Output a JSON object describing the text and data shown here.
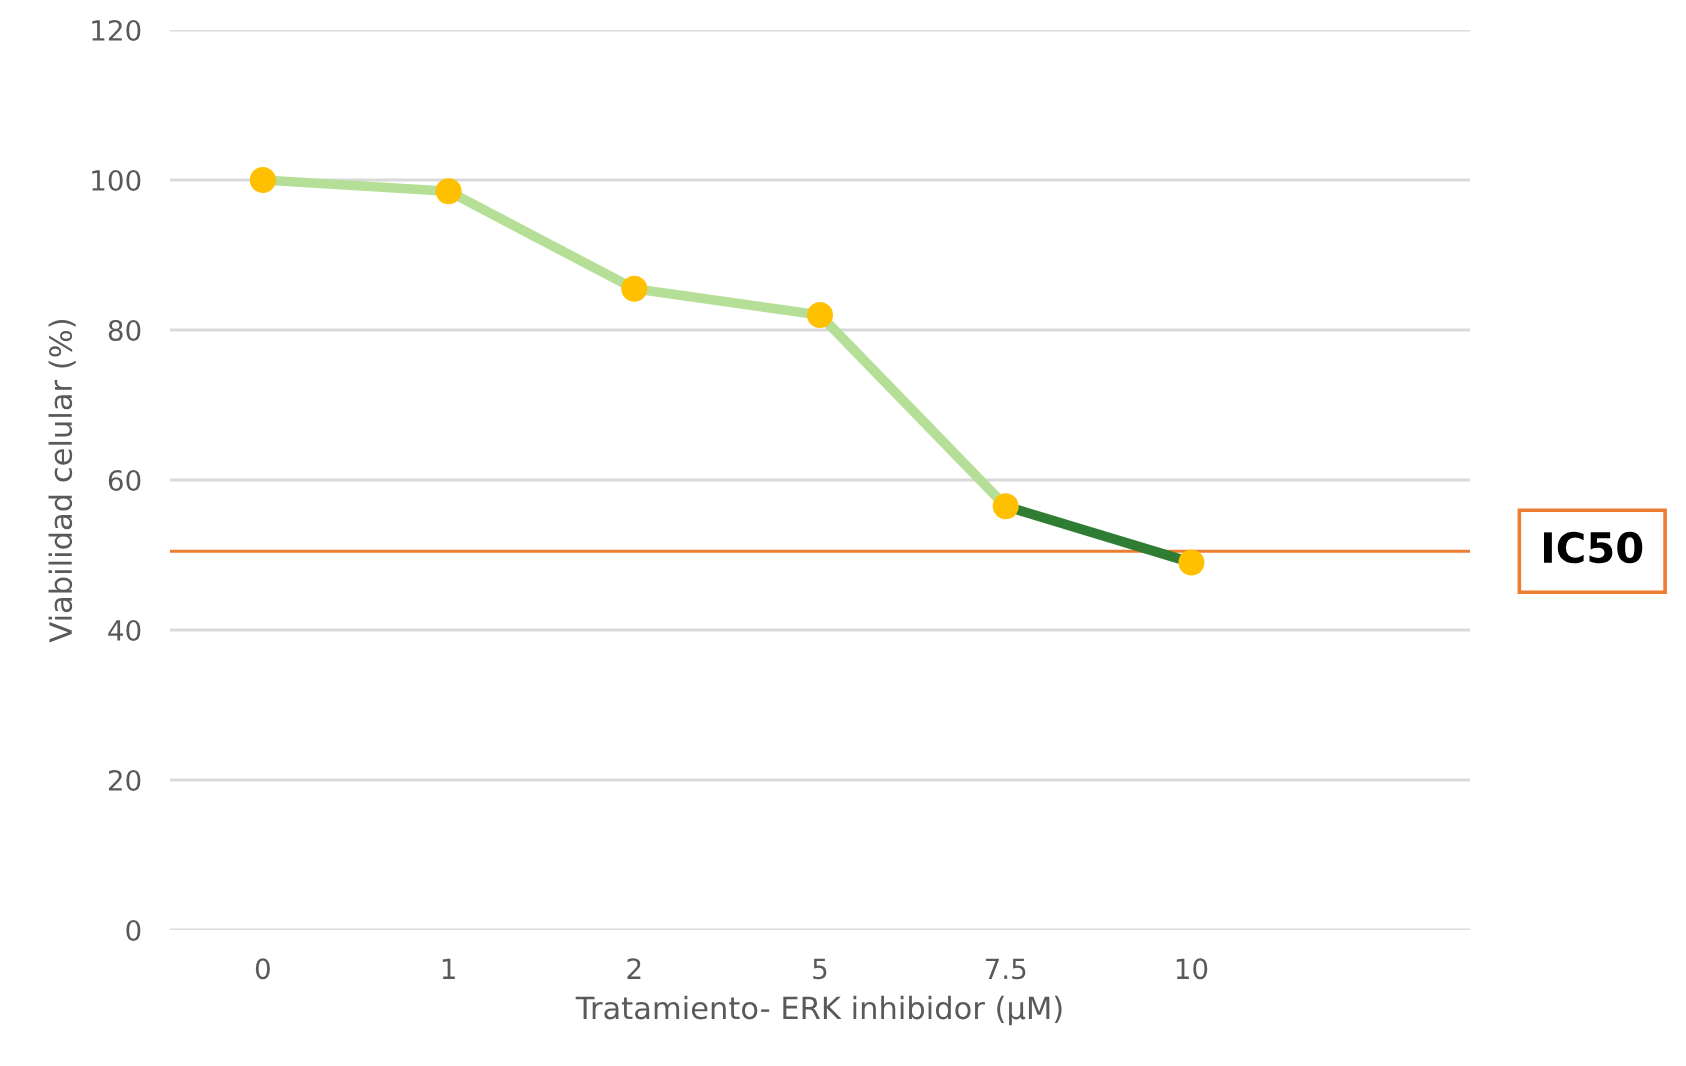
{
  "chart_data": {
    "type": "line",
    "xlabel": "Tratamiento- ERK inhibidor (µM)",
    "ylabel": "Viabilidad celular (%)",
    "categories": [
      "0",
      "1",
      "2",
      "5",
      "7.5",
      "10",
      null
    ],
    "series": [
      {
        "color": "#b5df96",
        "values": [
          100,
          98.5,
          85.5,
          82,
          56.5,
          null,
          null
        ]
      },
      {
        "color": "#2e7d32",
        "values": [
          null,
          null,
          null,
          null,
          56.5,
          49,
          null
        ]
      },
      {
        "type": "scatter",
        "marker": "circle",
        "color": "#ffc000",
        "values": [
          100,
          98.5,
          85.5,
          82,
          56.5,
          49,
          null
        ]
      }
    ],
    "ylim": [
      0,
      120
    ],
    "yticks": [
      0,
      20,
      40,
      60,
      80,
      100,
      120
    ],
    "grid": "y",
    "legend": false,
    "ref_lines": [
      {
        "axis": "y",
        "value": 50.5,
        "label": "IC50",
        "color": "#ed7d31"
      }
    ]
  }
}
